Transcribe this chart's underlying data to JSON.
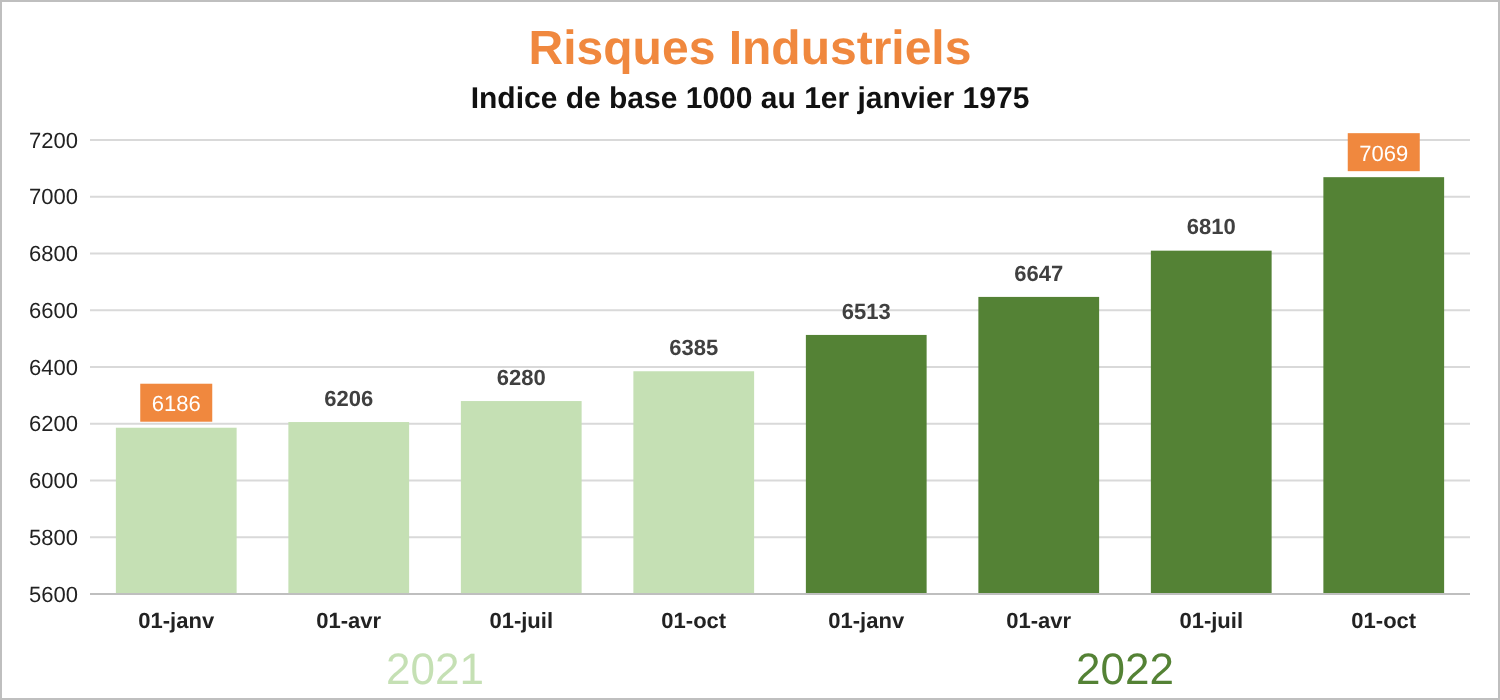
{
  "chart_data": {
    "type": "bar",
    "title": "Risques Industriels",
    "subtitle": "Indice de base 1000 au 1er janvier 1975",
    "categories": [
      "01-janv",
      "01-avr",
      "01-juil",
      "01-oct",
      "01-janv",
      "01-avr",
      "01-juil",
      "01-oct"
    ],
    "values": [
      6186,
      6206,
      6280,
      6385,
      6513,
      6647,
      6810,
      7069
    ],
    "colors": [
      "#c5e0b4",
      "#c5e0b4",
      "#c5e0b4",
      "#c5e0b4",
      "#548235",
      "#548235",
      "#548235",
      "#548235"
    ],
    "ylim": [
      5600,
      7200
    ],
    "yticks": [
      5600,
      5800,
      6000,
      6200,
      6400,
      6600,
      6800,
      7000,
      7200
    ],
    "grid": "y",
    "data_labels": true,
    "annotations": [
      "2021",
      "2022"
    ]
  }
}
